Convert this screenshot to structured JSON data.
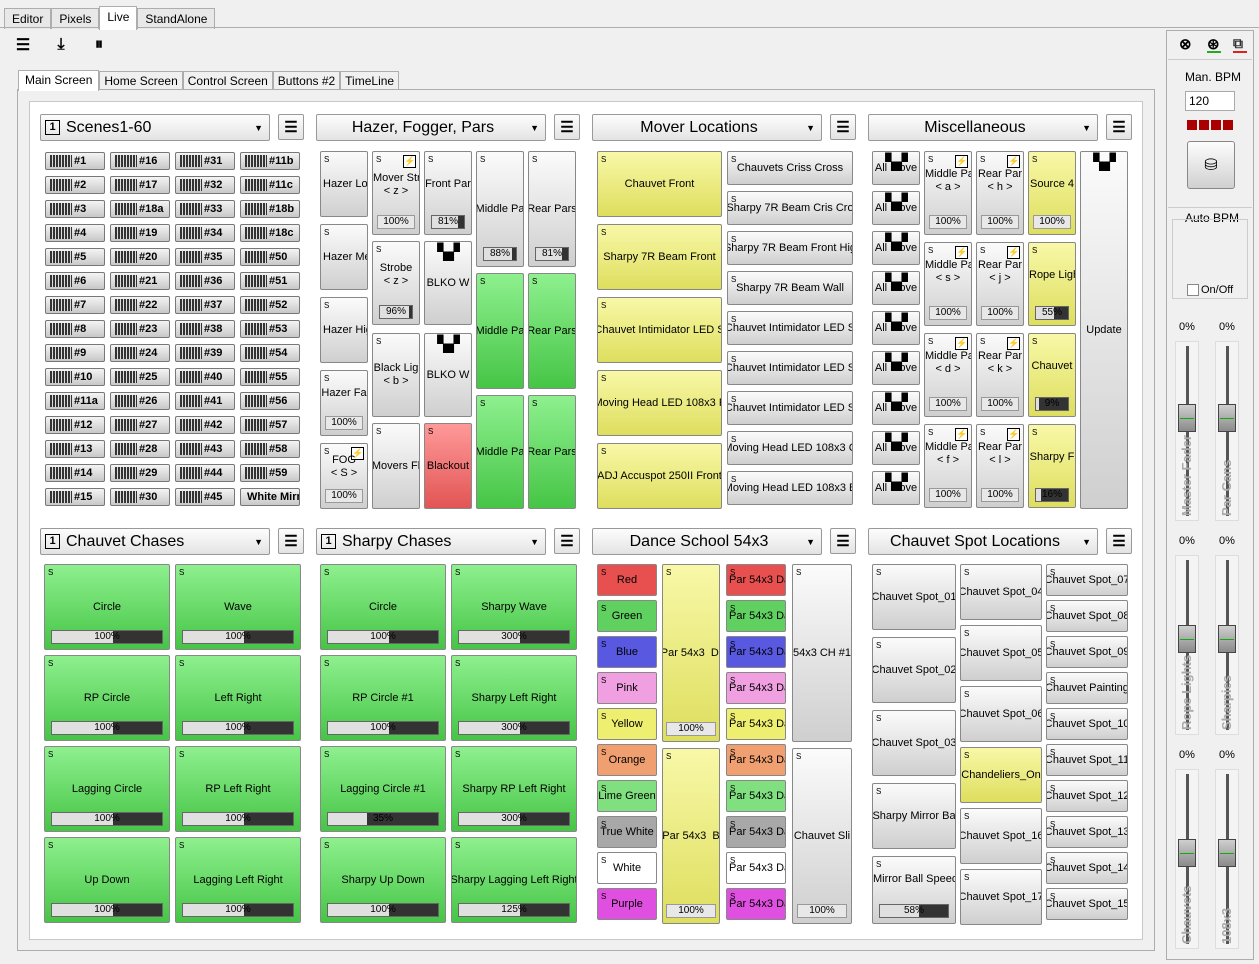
{
  "top_tabs": [
    "Editor",
    "Pixels",
    "Live",
    "StandAlone"
  ],
  "inner_tabs": [
    "Main Screen",
    "Home Screen",
    "Control Screen",
    "Buttons #2",
    "TimeLine"
  ],
  "panels": {
    "scenes": {
      "num": "1",
      "title": "Scenes1-60"
    },
    "hazer": {
      "title": "Hazer, Fogger, Pars"
    },
    "mover": {
      "title": "Mover Locations"
    },
    "misc": {
      "title": "Miscellaneous"
    },
    "chauvet_chases": {
      "num": "1",
      "title": "Chauvet Chases"
    },
    "sharpy_chases": {
      "num": "1",
      "title": "Sharpy Chases"
    },
    "dance": {
      "title": "Dance School 54x3"
    },
    "spot": {
      "title": "Chauvet Spot Locations"
    }
  },
  "scenes": [
    [
      "#1",
      "#16",
      "#31",
      "#11b"
    ],
    [
      "#2",
      "#17",
      "#32",
      "#11c"
    ],
    [
      "#3",
      "#18a",
      "#33",
      "#18b"
    ],
    [
      "#4",
      "#19",
      "#34",
      "#18c"
    ],
    [
      "#5",
      "#20",
      "#35",
      "#50"
    ],
    [
      "#6",
      "#21",
      "#36",
      "#51"
    ],
    [
      "#7",
      "#22",
      "#37",
      "#52"
    ],
    [
      "#8",
      "#23",
      "#38",
      "#53"
    ],
    [
      "#9",
      "#24",
      "#39",
      "#54"
    ],
    [
      "#10",
      "#25",
      "#40",
      "#55"
    ],
    [
      "#11a",
      "#26",
      "#41",
      "#56"
    ],
    [
      "#12",
      "#27",
      "#42",
      "#57"
    ],
    [
      "#13",
      "#28",
      "#43",
      "#58"
    ],
    [
      "#14",
      "#29",
      "#44",
      "#59"
    ],
    [
      "#15",
      "#30",
      "#45",
      "White Mirr"
    ]
  ],
  "hazer": {
    "col1": [
      "Hazer Lo",
      "Hazer Me",
      "Hazer Hig",
      "Hazer Fa",
      "FOG\n< S >"
    ],
    "col1_pct": [
      "100%",
      "100%"
    ],
    "mover_str": "Mover Str\n< z >",
    "mover_str_pct": "100%",
    "strobe": "Strobe\n< z >",
    "strobe_pct": "96%",
    "black_lig": "Black Lig\n< b >",
    "movers_f": "Movers Fl",
    "front_par": "Front Par",
    "front_par_pct": "81%",
    "blko1": "BLKO W",
    "blko2": "BLKO W",
    "blackout": "Blackout",
    "middle": [
      "Middle Pa",
      "Middle Pa",
      "Middle Pa"
    ],
    "middle_pct": "88%",
    "rear": [
      "Rear Pars",
      "Rear Pars",
      "Rear Pars"
    ],
    "rear_pct": "81%"
  },
  "mover": {
    "left": [
      "Chauvet Front",
      "Sharpy 7R Beam Front",
      "Chauvet Intimidator LED S",
      "Moving Head LED 108x3 F",
      "ADJ Accuspot 250II Front"
    ],
    "right": [
      "Chauvets Criss Cross",
      "Sharpy 7R Beam Cris Cro",
      "Sharpy 7R Beam Front Hig",
      "Sharpy 7R Beam Wall",
      "Chauvet Intimidator LED S",
      "Chauvet Intimidator LED S",
      "Chauvet Intimidator LED S",
      "Moving Head LED 108x3 C",
      "Moving Head LED 108x3 B"
    ]
  },
  "misc": {
    "moves": [
      "All Move",
      "All Move",
      "All Move",
      "All Move",
      "All Move",
      "All Move",
      "All Move",
      "All Move",
      "All Move"
    ],
    "middle": [
      "Middle Pa\n< a >",
      "Middle Pa\n< s >",
      "Middle Pa\n< d >",
      "Middle Pa\n< f >"
    ],
    "rear": [
      "Rear Par\n< h >",
      "Rear Par\n< j >",
      "Rear Par\n< k >",
      "Rear Par\n< l >"
    ],
    "pct": "100%",
    "yellow": [
      "Source 4",
      "Rope Ligh",
      "Chauvet",
      "Sharpy F"
    ],
    "yellow_pct": [
      "100%",
      "55%",
      "9%",
      "16%"
    ],
    "update": "Update"
  },
  "chauvet_chases": [
    {
      "label": "Circle",
      "pct": "100%"
    },
    {
      "label": "Wave",
      "pct": "100%"
    },
    {
      "label": "RP Circle",
      "pct": "100%"
    },
    {
      "label": "Left Right",
      "pct": "100%"
    },
    {
      "label": "Lagging Circle",
      "pct": "100%"
    },
    {
      "label": "RP Left Right",
      "pct": "100%"
    },
    {
      "label": "Up Down",
      "pct": "100%"
    },
    {
      "label": "Lagging Left Right",
      "pct": "100%"
    }
  ],
  "sharpy_chases": [
    {
      "label": "Circle",
      "pct": "100%"
    },
    {
      "label": "Sharpy Wave",
      "pct": "300%"
    },
    {
      "label": "RP Circle #1",
      "pct": "100%"
    },
    {
      "label": "Sharpy Left Right",
      "pct": "300%"
    },
    {
      "label": "Lagging Circle #1",
      "pct": "35%"
    },
    {
      "label": "Sharpy RP Left Right",
      "pct": "300%"
    },
    {
      "label": "Sharpy Up Down",
      "pct": "100%"
    },
    {
      "label": "Sharpy Lagging Left Right",
      "pct": "125%"
    }
  ],
  "dance": {
    "colors": [
      "Red",
      "Green",
      "Blue",
      "Pink",
      "Yellow",
      "Orange",
      "Lime Green",
      "True White",
      "White",
      "Purple"
    ],
    "color_hex": [
      "#e85050",
      "#60d060",
      "#5858e0",
      "#f0a0e0",
      "#eeee70",
      "#f0a070",
      "#80e080",
      "#a8a8a8",
      "#ffffff",
      "#e050e0"
    ],
    "par_di": "Par 54x3  Di",
    "par_b": "Par 54x3  B",
    "par_pct": "100%",
    "par_da": "Par 54x3 Da",
    "ch1": "54x3 CH #1",
    "sli": "Chauvet Sli",
    "sli_pct": "100%"
  },
  "spot": {
    "col1": [
      "Chauvet Spot_01",
      "Chauvet Spot_02",
      "Chauvet Spot_03",
      "Sharpy Mirror Ba",
      "Mirror Ball Speed"
    ],
    "mirror_pct": "58%",
    "col2": [
      "Chauvet Spot_04",
      "Chauvet Spot_05",
      "Chauvet Spot_06",
      "Chandeliers_On",
      "Chauvet Spot_16",
      "Chauvet Spot_17"
    ],
    "col3": [
      "Chauvet Spot_07",
      "Chauvet Spot_08",
      "Chauvet Spot_09",
      "Chauvet Painting",
      "Chauvet Spot_10",
      "Chauvet Spot_11",
      "Chauvet Spot_12",
      "Chauvet Spot_13",
      "Chauvet Spot_14",
      "Chauvet Spot_15"
    ]
  },
  "sidebar": {
    "man_bpm_label": "Man. BPM",
    "bpm": "120",
    "auto_bpm_label": "Auto BPM",
    "onoff": "On/Off",
    "faders": [
      {
        "label": "Master Fader",
        "pct": "0%",
        "level": 0.6
      },
      {
        "label": "Par Cans",
        "pct": "0%",
        "level": 0.6
      },
      {
        "label": "Rope Lights",
        "pct": "0%",
        "level": 0.55
      },
      {
        "label": "Sharpies",
        "pct": "0%",
        "level": 0.55
      },
      {
        "label": "Chauvets",
        "pct": "0%",
        "level": 0.55
      },
      {
        "label": "108x3",
        "pct": "0%",
        "level": 0.55
      }
    ]
  }
}
